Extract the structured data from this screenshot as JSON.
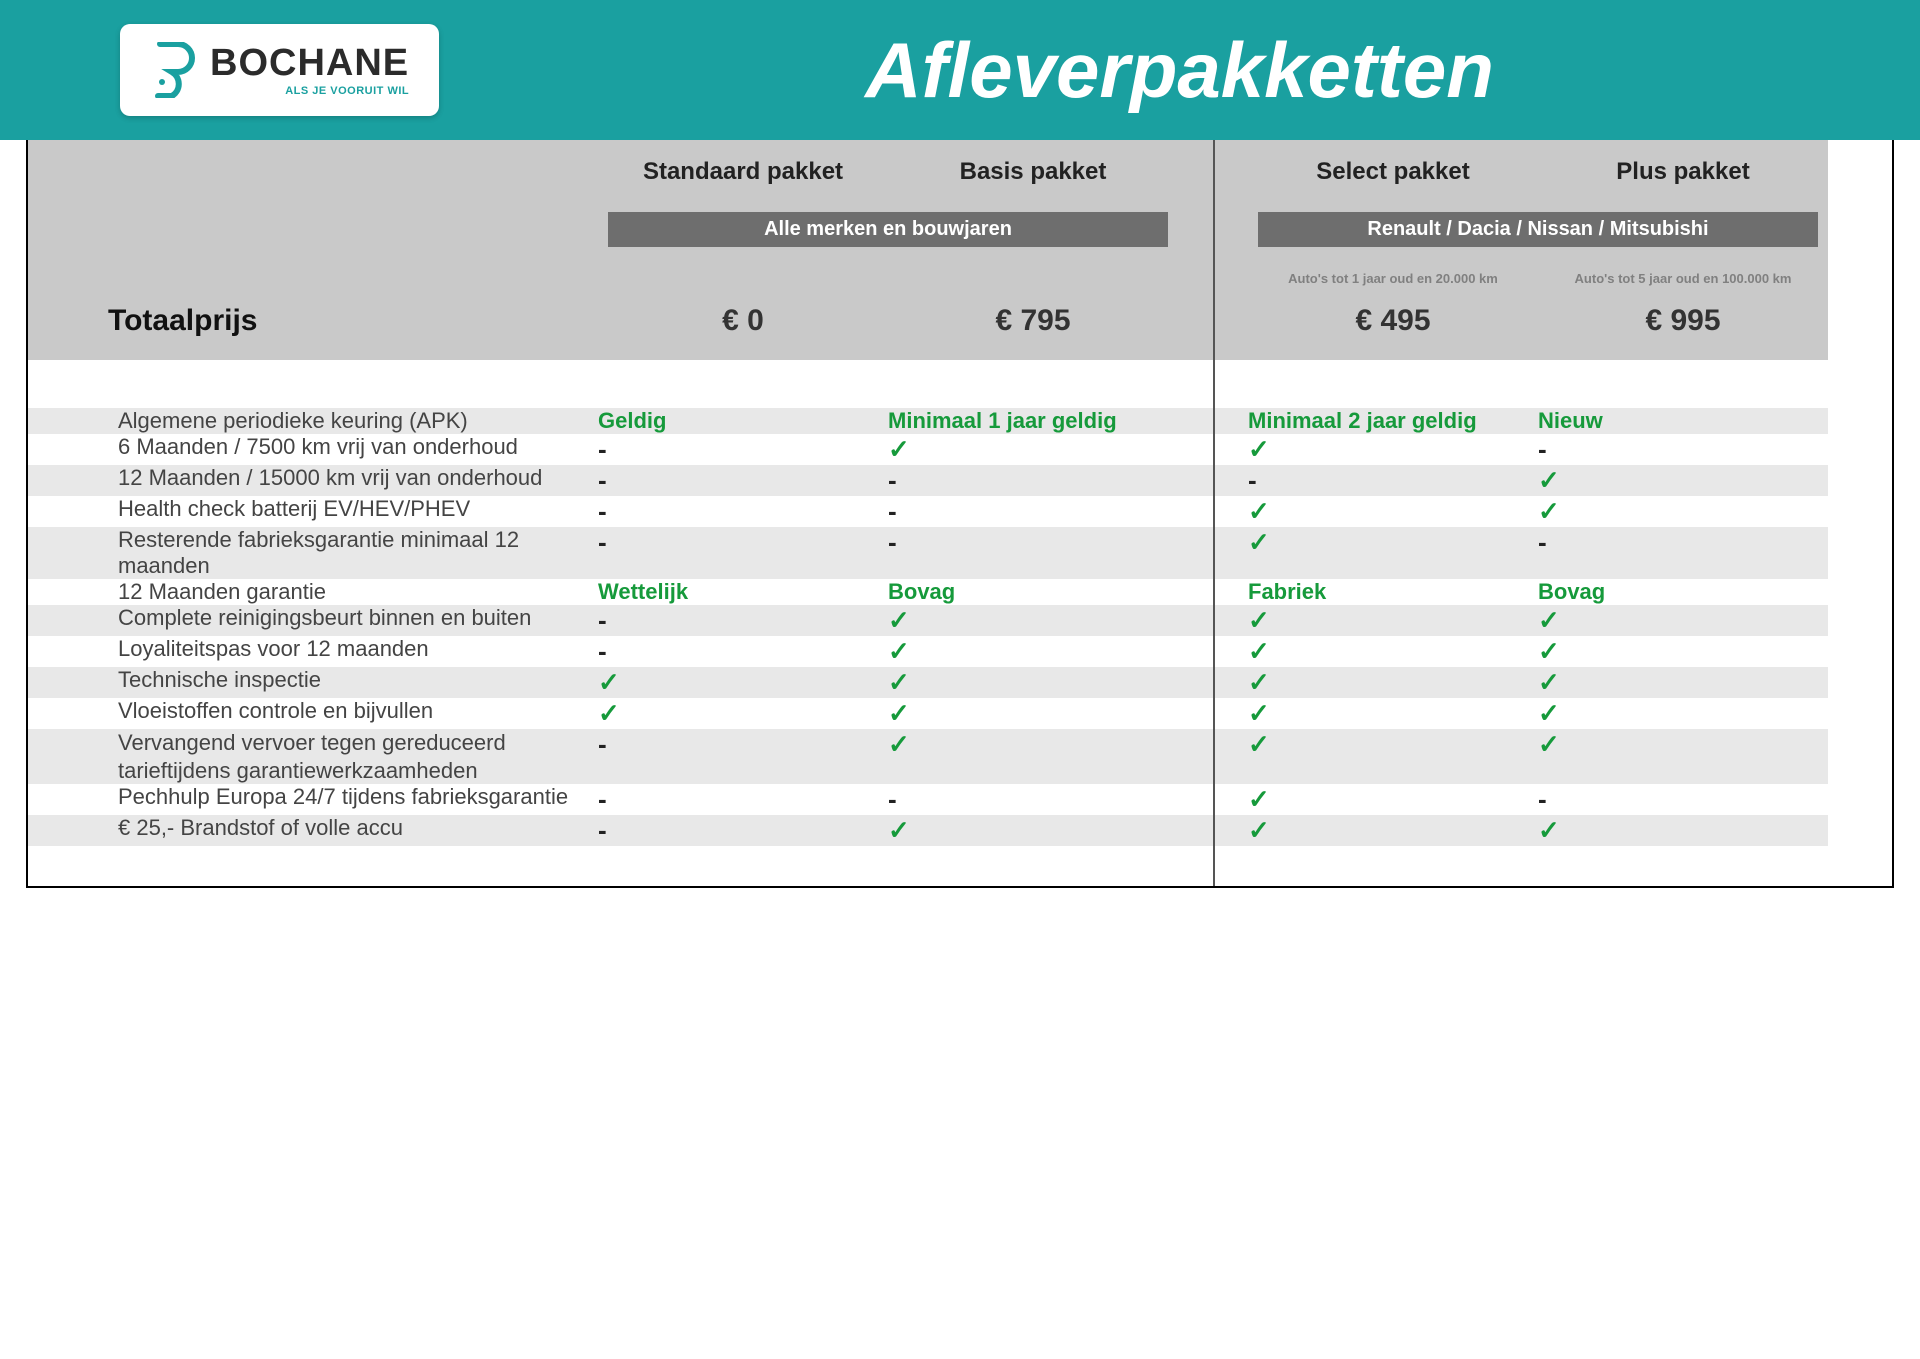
{
  "brand": {
    "name": "BOCHANE",
    "tagline": "ALS JE VOORUIT WIL",
    "logo_color": "#1aa0a0"
  },
  "header": {
    "background": "#1aa0a0",
    "title": "Afleverpakketten"
  },
  "columns": [
    {
      "key": "standaard",
      "title": "Standaard pakket",
      "price": "€ 0",
      "group": 0
    },
    {
      "key": "basis",
      "title": "Basis pakket",
      "price": "€ 795",
      "group": 0
    },
    {
      "key": "select",
      "title": "Select pakket",
      "price": "€ 495",
      "group": 1,
      "note": "Auto's tot 1 jaar oud en 20.000 km"
    },
    {
      "key": "plus",
      "title": "Plus pakket",
      "price": "€ 995",
      "group": 1,
      "note": "Auto's tot 5 jaar oud en 100.000 km"
    }
  ],
  "groups": [
    {
      "label": "Alle merken en bouwjaren"
    },
    {
      "label": "Renault / Dacia / Nissan / Mitsubishi"
    }
  ],
  "totaal_label": "Totaalprijs",
  "features": [
    {
      "label": "Algemene periodieke keuring (APK)",
      "stripe": true,
      "values": [
        "Geldig",
        "Minimaal 1 jaar geldig",
        "Minimaal 2 jaar geldig",
        "Nieuw"
      ],
      "style": "text"
    },
    {
      "label": "6 Maanden / 7500 km vrij van onderhoud",
      "stripe": false,
      "values": [
        "-",
        "check",
        "check",
        "-"
      ]
    },
    {
      "label": "12 Maanden / 15000 km vrij van onderhoud",
      "stripe": true,
      "values": [
        "-",
        "-",
        "-",
        "check"
      ]
    },
    {
      "label": "Health check batterij EV/HEV/PHEV",
      "stripe": false,
      "values": [
        "-",
        "-",
        "check",
        "check"
      ]
    },
    {
      "label": "Resterende fabrieksgarantie minimaal 12 maanden",
      "stripe": true,
      "values": [
        "-",
        "-",
        "check",
        "-"
      ]
    },
    {
      "label": "12 Maanden  garantie",
      "stripe": false,
      "values": [
        "Wettelijk",
        "Bovag",
        "Fabriek",
        "Bovag"
      ],
      "style": "text"
    },
    {
      "label": "Complete reinigingsbeurt binnen en buiten",
      "stripe": true,
      "values": [
        "-",
        "check",
        "check",
        "check"
      ]
    },
    {
      "label": "Loyaliteitspas voor 12 maanden",
      "stripe": false,
      "values": [
        "-",
        "check",
        "check",
        "check"
      ]
    },
    {
      "label": "Technische inspectie",
      "stripe": true,
      "values": [
        "check",
        "check",
        "check",
        "check"
      ]
    },
    {
      "label": "Vloeistoffen controle en bijvullen",
      "stripe": false,
      "values": [
        "check",
        "check",
        "check",
        "check"
      ]
    },
    {
      "label": "Vervangend vervoer tegen gereduceerd tarief",
      "label2": "tijdens garantiewerkzaamheden",
      "stripe": true,
      "values": [
        "-",
        "check",
        "check",
        "check"
      ]
    },
    {
      "label": "Pechhulp Europa 24/7 tijdens fabrieksgarantie",
      "stripe": false,
      "values": [
        "-",
        "-",
        "check",
        "-"
      ]
    },
    {
      "label": "€ 25,- Brandstof of  volle accu",
      "stripe": true,
      "values": [
        "-",
        "check",
        "check",
        "check"
      ]
    }
  ],
  "colors": {
    "header_gray": "#c9c9c9",
    "stripe_gray": "#e8e8e8",
    "subbar_gray": "#6e6e6e",
    "green": "#169a3b",
    "text": "#333333"
  }
}
